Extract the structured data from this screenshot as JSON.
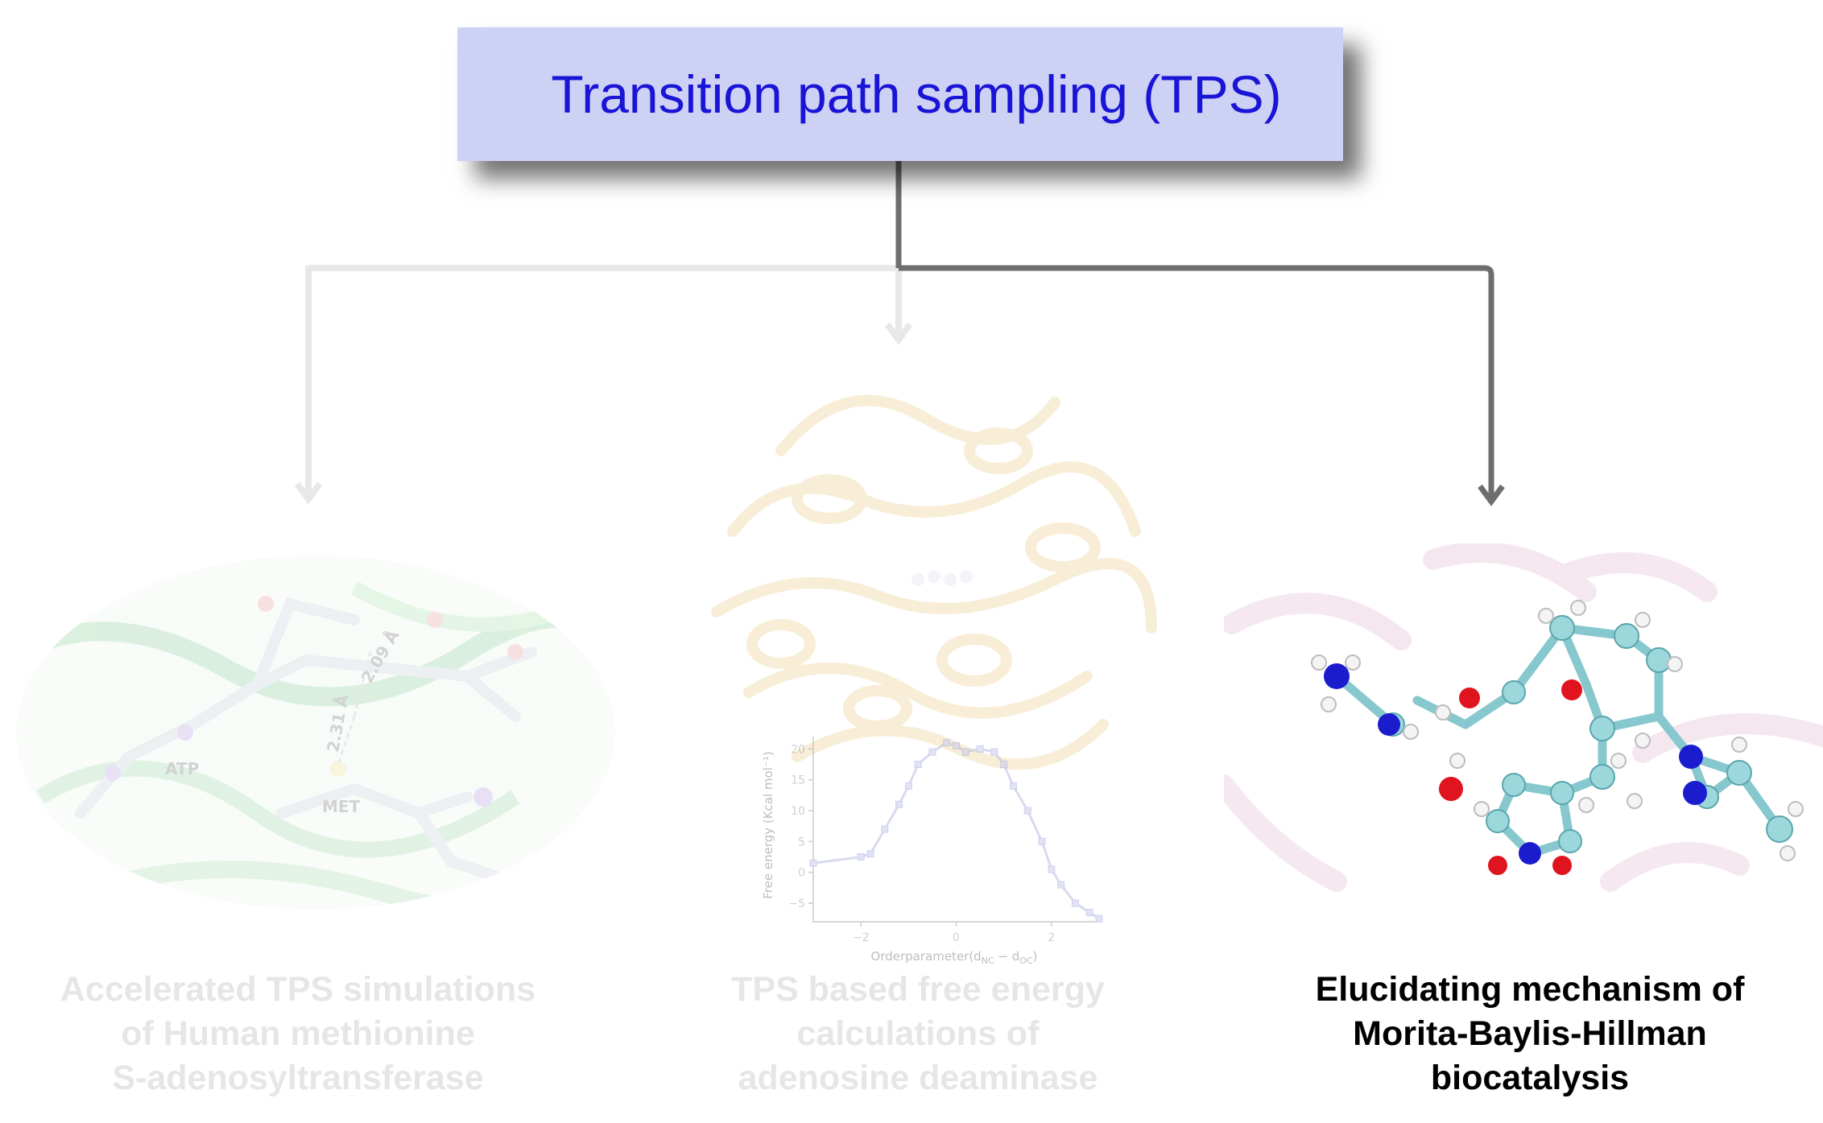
{
  "title": "Transition path sampling (TPS)",
  "branches": [
    {
      "caption_lines": [
        "Accelerated TPS simulations",
        "of Human methionine",
        "S-adenosyltransferase"
      ],
      "labels": {
        "distance_a": "2.09 Å",
        "distance_b": "2.31 Å",
        "ligand_a": "ATP",
        "ligand_b": "MET"
      },
      "state": "faded"
    },
    {
      "caption_lines": [
        "TPS based free energy",
        "calculations of",
        "adenosine deaminase"
      ],
      "state": "faded",
      "inset_chart": {
        "ylabel": "Free energy (Kcal mol⁻¹)",
        "xlabel_main": "Orderparameter(d",
        "xlabel_sub1": "NC",
        "xlabel_mid": " − d",
        "xlabel_sub2": "OC",
        "xlabel_end": ")",
        "yticks": [
          "20",
          "15",
          "10",
          "5",
          "0",
          "−5"
        ],
        "xticks": [
          "−2",
          "0",
          "2"
        ]
      }
    },
    {
      "caption_lines": [
        "Elucidating mechanism of",
        "Morita-Baylis-Hillman",
        "biocatalysis"
      ],
      "state": "active"
    }
  ],
  "chart_data": {
    "type": "line",
    "title": "",
    "xlabel": "Orderparameter(dNC − dOC)",
    "ylabel": "Free energy (Kcal mol⁻¹)",
    "xlim": [
      -3,
      3
    ],
    "ylim": [
      -8,
      22
    ],
    "x": [
      -3.0,
      -2.0,
      -1.8,
      -1.5,
      -1.2,
      -1.0,
      -0.8,
      -0.5,
      -0.2,
      0.0,
      0.2,
      0.5,
      0.8,
      1.0,
      1.2,
      1.5,
      1.8,
      2.0,
      2.2,
      2.5,
      2.8,
      3.0
    ],
    "series": [
      {
        "values": [
          1.5,
          2.5,
          3.0,
          7.0,
          11.0,
          14.0,
          17.5,
          19.5,
          21.0,
          20.5,
          19.5,
          20.0,
          19.5,
          17.5,
          14.0,
          10.0,
          5.0,
          0.5,
          -2.0,
          -5.0,
          -6.5,
          -7.5
        ]
      }
    ],
    "grid": false
  },
  "colors": {
    "title_bg": "#cdd1f4",
    "title_text": "#1a14d6",
    "connector_active": "#6e6e6e",
    "connector_faded": "#e8e8e8",
    "caption_faded": "#e6e6e6",
    "caption_active": "#000000"
  }
}
